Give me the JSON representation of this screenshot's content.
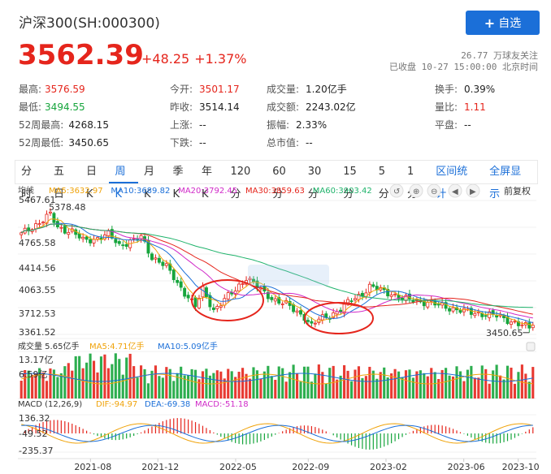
{
  "header": {
    "title": "沪深300(SH:000300)",
    "follow_label": "自选",
    "price": "3562.39",
    "change": "+48.25",
    "change_pct": "+1.37%",
    "followers": "26.77 万球友关注",
    "status": "已收盘 10-27 15:00:00 北京时间"
  },
  "quote": [
    {
      "label": "最高:",
      "value": "3576.59",
      "tone": "up"
    },
    {
      "label": "今开:",
      "value": "3501.17",
      "tone": "up"
    },
    {
      "label": "成交量:",
      "value": "1.20亿手",
      "tone": "plain"
    },
    {
      "label": "换手:",
      "value": "0.39%",
      "tone": "plain"
    },
    {
      "label": "最低:",
      "value": "3494.55",
      "tone": "down"
    },
    {
      "label": "昨收:",
      "value": "3514.14",
      "tone": "plain"
    },
    {
      "label": "成交额:",
      "value": "2243.02亿",
      "tone": "plain"
    },
    {
      "label": "量比:",
      "value": "1.11",
      "tone": "up"
    },
    {
      "label": "52周最高:",
      "value": "4268.15",
      "tone": "plain"
    },
    {
      "label": "上涨:",
      "value": "--",
      "tone": "plain"
    },
    {
      "label": "振幅:",
      "value": "2.33%",
      "tone": "plain"
    },
    {
      "label": "平盘:",
      "value": "--",
      "tone": "plain"
    },
    {
      "label": "52周最低:",
      "value": "3450.65",
      "tone": "plain"
    },
    {
      "label": "下跌:",
      "value": "--",
      "tone": "plain"
    },
    {
      "label": "总市值:",
      "value": "--",
      "tone": "plain"
    }
  ],
  "tabs": [
    "分时",
    "五日",
    "日K",
    "周K",
    "月K",
    "季K",
    "年K",
    "120分",
    "60分",
    "30分",
    "15分",
    "5分",
    "1分"
  ],
  "active_tab": "周K",
  "tab_actions": [
    "区间统计",
    "全屏显示"
  ],
  "toolbar": {
    "restore_adj": "前复权"
  },
  "legends": {
    "price_label": "均线",
    "ma": [
      {
        "text": "MA5:3632.97",
        "color": "#f0a30a"
      },
      {
        "text": "MA10:3689.82",
        "color": "#1b6fd8"
      },
      {
        "text": "MA20:3792.45",
        "color": "#d02ac8"
      },
      {
        "text": "MA30:3859.63",
        "color": "#e5251c"
      },
      {
        "text": "MA60:3903.42",
        "color": "#1fb36b"
      }
    ],
    "volume": {
      "label": "成交量 5.65亿手",
      "ma5": "MA5:4.71亿手",
      "ma10": "MA10:5.09亿手"
    },
    "macd": {
      "label": "MACD (12,26,9)",
      "dif": "DIF:-94.97",
      "dea": "DEA:-69.38",
      "macd": "MACD:-51.18"
    }
  },
  "chart_data": {
    "type": "candlestick",
    "price_ticks": [
      "5467.61",
      "5378.48",
      "4765.58",
      "4414.56",
      "4063.55",
      "3712.53",
      "3361.52"
    ],
    "period_low_label": "3450.65",
    "volume_ticks": [
      "13.17亿",
      "6.59亿"
    ],
    "macd_ticks": [
      "136.32",
      "-49.52",
      "-235.37"
    ],
    "x_ticks": [
      "2021-08",
      "2021-12",
      "2022-05",
      "2022-09",
      "2023-02",
      "2023-06",
      "2023-10"
    ],
    "ylim": [
      3361.52,
      5467.61
    ],
    "close_anchors": [
      [
        0,
        4950
      ],
      [
        4,
        5100
      ],
      [
        8,
        5250
      ],
      [
        10,
        5050
      ],
      [
        14,
        5000
      ],
      [
        17,
        4850
      ],
      [
        20,
        4880
      ],
      [
        24,
        4950
      ],
      [
        27,
        4780
      ],
      [
        30,
        4850
      ],
      [
        33,
        4900
      ],
      [
        36,
        4600
      ],
      [
        38,
        4550
      ],
      [
        40,
        4450
      ],
      [
        43,
        4200
      ],
      [
        46,
        4000
      ],
      [
        48,
        3850
      ],
      [
        50,
        4100
      ],
      [
        53,
        3800
      ],
      [
        56,
        3950
      ],
      [
        59,
        4100
      ],
      [
        62,
        4300
      ],
      [
        64,
        4200
      ],
      [
        67,
        4050
      ],
      [
        70,
        3950
      ],
      [
        73,
        3880
      ],
      [
        75,
        3800
      ],
      [
        78,
        3700
      ],
      [
        80,
        3550
      ],
      [
        82,
        3650
      ],
      [
        85,
        3720
      ],
      [
        88,
        3800
      ],
      [
        91,
        3950
      ],
      [
        94,
        4050
      ],
      [
        96,
        4150
      ],
      [
        99,
        4100
      ],
      [
        102,
        4050
      ],
      [
        105,
        3960
      ],
      [
        108,
        3950
      ],
      [
        111,
        3920
      ],
      [
        114,
        3880
      ],
      [
        117,
        3850
      ],
      [
        120,
        3800
      ],
      [
        123,
        3760
      ],
      [
        126,
        3750
      ],
      [
        129,
        3720
      ],
      [
        131,
        3700
      ],
      [
        134,
        3650
      ],
      [
        137,
        3580
      ],
      [
        140,
        3520
      ],
      [
        141,
        3562.39
      ]
    ],
    "period_low": 3450.65,
    "last_close": 3562.39
  }
}
